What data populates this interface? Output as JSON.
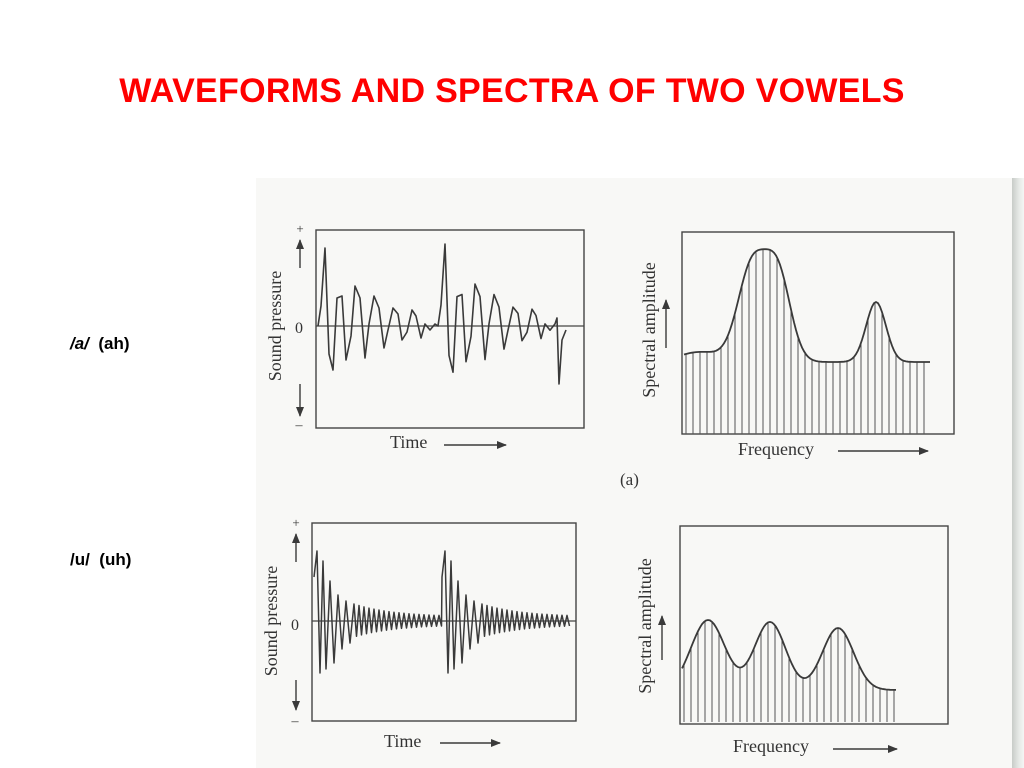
{
  "slide": {
    "title": "WAVEFORMS AND SPECTRA OF TWO VOWELS"
  },
  "rows": [
    {
      "vowel_symbol": "/a/",
      "vowel_gloss": "(ah)",
      "waveform": {
        "y_axis_label": "Sound pressure",
        "y_plus": "+",
        "y_zero": "0",
        "y_minus": "–",
        "x_axis_label": "Time"
      },
      "spectrum": {
        "y_axis_label": "Spectral amplitude",
        "x_axis_label": "Frequency"
      },
      "panel_caption": "(a)"
    },
    {
      "vowel_symbol": "/u/",
      "vowel_gloss": "(uh)",
      "waveform": {
        "y_axis_label": "Sound pressure",
        "y_plus": "+",
        "y_zero": "0",
        "y_minus": "–",
        "x_axis_label": "Time"
      },
      "spectrum": {
        "y_axis_label": "Spectral amplitude",
        "x_axis_label": "Frequency"
      }
    }
  ],
  "colors": {
    "title": "#ff0000",
    "ink": "#3a3a3a"
  }
}
